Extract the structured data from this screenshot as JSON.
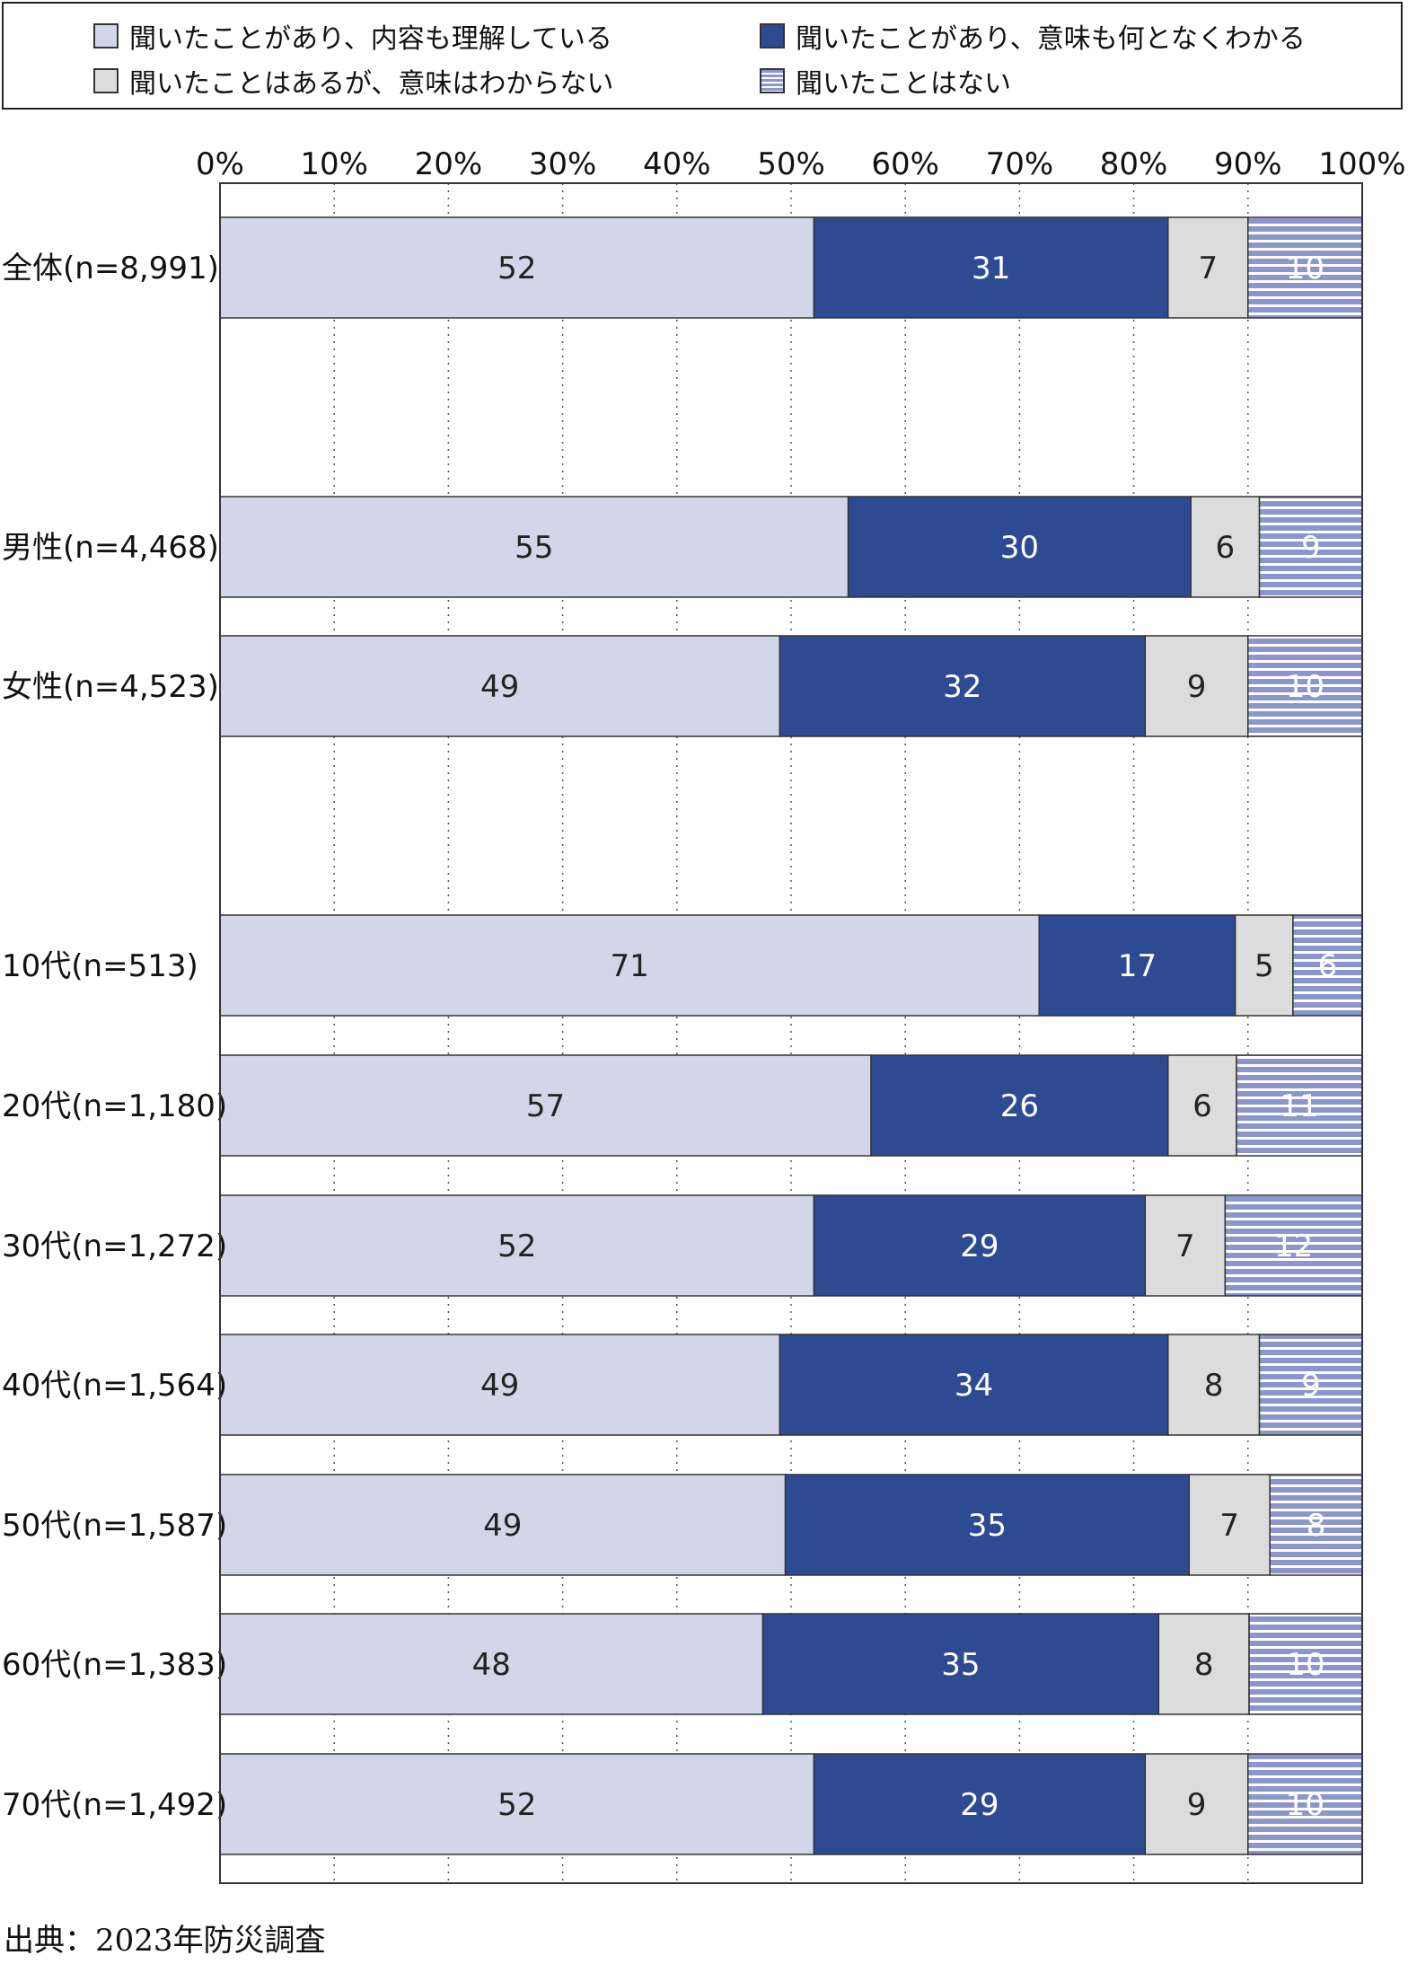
{
  "legend": {
    "items": [
      {
        "label": "聞いたことがあり、内容も理解している"
      },
      {
        "label": "聞いたことがあり、意味も何となくわかる"
      },
      {
        "label": "聞いたことはあるが、意味はわからない"
      },
      {
        "label": "聞いたことはない"
      }
    ]
  },
  "colors": {
    "understand": "#d3d6e8",
    "somewhat": "#2e4a93",
    "dont_know": "#dcdcdc",
    "never": "#8a96cc",
    "never_stripe": "#ffffff"
  },
  "chart_data": {
    "type": "bar",
    "orientation": "horizontal",
    "stacked": true,
    "xlim": [
      0,
      100
    ],
    "x_ticks": [
      "0%",
      "10%",
      "20%",
      "30%",
      "40%",
      "50%",
      "60%",
      "70%",
      "80%",
      "90%",
      "100%"
    ],
    "categories": [
      "全体(n=8,991)",
      "男性(n=4,468)",
      "女性(n=4,523)",
      "10代(n=513)",
      "20代(n=1,180)",
      "30代(n=1,272)",
      "40代(n=1,564)",
      "50代(n=1,587)",
      "60代(n=1,383)",
      "70代(n=1,492)"
    ],
    "series": [
      {
        "name": "聞いたことがあり、内容も理解している",
        "values": [
          52,
          55,
          49,
          71,
          57,
          52,
          49,
          49,
          48,
          52
        ]
      },
      {
        "name": "聞いたことがあり、意味も何となくわかる",
        "values": [
          31,
          30,
          32,
          17,
          26,
          29,
          34,
          35,
          35,
          29
        ]
      },
      {
        "name": "聞いたことはあるが、意味はわからない",
        "values": [
          7,
          6,
          9,
          5,
          6,
          7,
          8,
          7,
          8,
          9
        ]
      },
      {
        "name": "聞いたことはない",
        "values": [
          10,
          9,
          10,
          6,
          11,
          12,
          9,
          8,
          10,
          10
        ]
      }
    ],
    "grid": "vertical-dotted",
    "legend": "top"
  },
  "source": "出典：2023年防災調査"
}
